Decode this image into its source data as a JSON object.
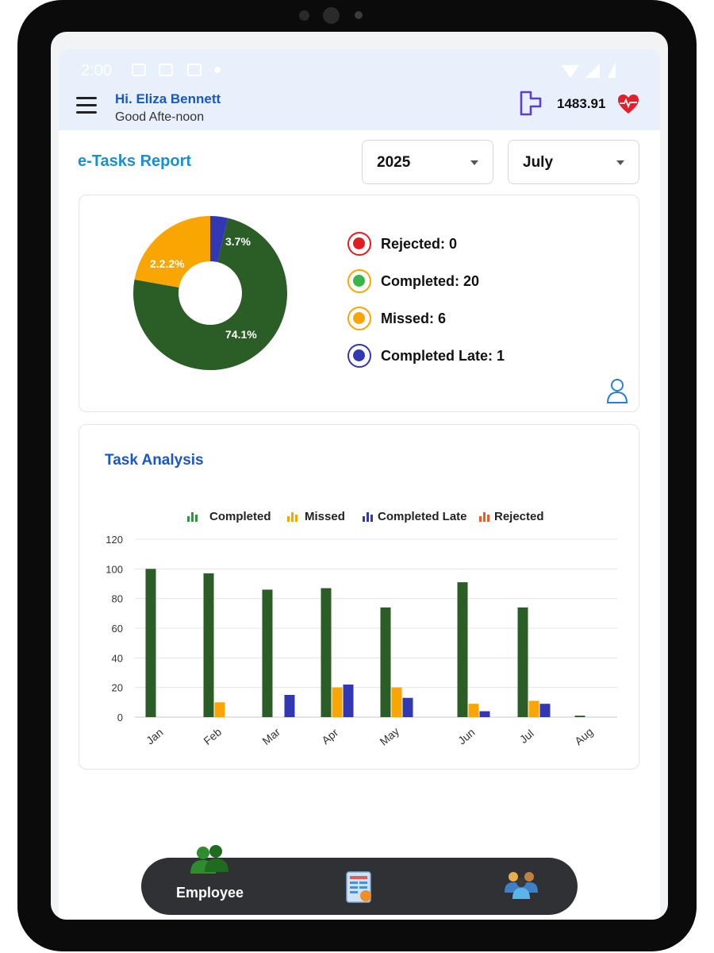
{
  "status_bar": {
    "time": "2:00"
  },
  "header": {
    "greeting_name": "Hi. Eliza Bennett",
    "greeting_sub": "Good Afte-noon",
    "points": "1483.91",
    "icons": {
      "menu": "hamburger-menu-icon",
      "badge": "p-badge-icon",
      "health": "heart-pulse-icon"
    }
  },
  "report": {
    "title": "e-Tasks Report",
    "year": "2025",
    "month": "July"
  },
  "summary": {
    "donut": [
      {
        "label": "3.7%",
        "value": 3.7,
        "color": "#3238b4"
      },
      {
        "label": "74.1%",
        "value": 74.1,
        "color": "#2b5d27"
      },
      {
        "label": "2.2.2%",
        "value": 22.2,
        "color": "#f9a602"
      }
    ],
    "legend": [
      {
        "text": "Rejected: 0",
        "color": "#e21d22"
      },
      {
        "text": "Completed: 20",
        "color": "#3ab54a"
      },
      {
        "text": "Missed: 6",
        "color": "#f9a602"
      },
      {
        "text": "Completed Late: 1",
        "color": "#3238b4"
      }
    ]
  },
  "analysis": {
    "title": "Task Analysis"
  },
  "chart_data": {
    "type": "bar",
    "title": "Task Analysis",
    "categories": [
      "Jan",
      "Feb",
      "Mar",
      "Apr",
      "May",
      "Jun",
      "Jul",
      "Aug"
    ],
    "series": [
      {
        "name": "Completed",
        "color": "#2b5d27",
        "values": [
          100,
          97,
          86,
          87,
          74,
          91,
          74,
          1
        ]
      },
      {
        "name": "Missed",
        "color": "#f9a602",
        "values": [
          0,
          10,
          0,
          20,
          20,
          9,
          11,
          0
        ]
      },
      {
        "name": "Completed Late",
        "color": "#3238b4",
        "values": [
          0,
          0,
          15,
          22,
          13,
          4,
          9,
          0
        ]
      },
      {
        "name": "Rejected",
        "color": "#ee5a24",
        "values": [
          0,
          0,
          0,
          0,
          0,
          0,
          0,
          0
        ]
      }
    ],
    "yticks": [
      "120",
      "100",
      "80",
      "60",
      "40",
      "20",
      "0"
    ],
    "ylim": [
      0,
      120
    ],
    "legend_position": "top",
    "grid": true
  },
  "bottom_nav": {
    "items": [
      {
        "label": "Employee",
        "icon": "employee-group-icon"
      },
      {
        "label": "",
        "icon": "report-sheet-icon"
      },
      {
        "label": "",
        "icon": "team-icon"
      }
    ]
  }
}
